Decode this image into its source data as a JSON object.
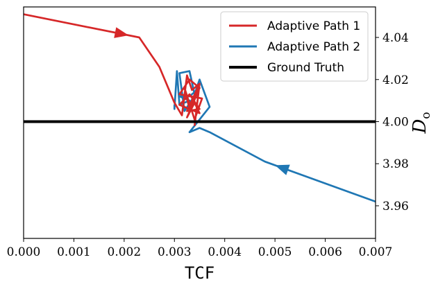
{
  "chart_data": {
    "type": "line",
    "xlabel": "TCF",
    "ylabel": "D",
    "ylabel_subscript": "o",
    "xlim": [
      0.0,
      0.007
    ],
    "ylim": [
      3.9445,
      4.0545
    ],
    "x_ticks": [
      0.0,
      0.001,
      0.002,
      0.003,
      0.004,
      0.005,
      0.006,
      0.007
    ],
    "x_tick_labels": [
      "0.000",
      "0.001",
      "0.002",
      "0.003",
      "0.004",
      "0.005",
      "0.006",
      "0.007"
    ],
    "y_ticks": [
      3.96,
      3.98,
      4.0,
      4.02,
      4.04
    ],
    "y_tick_labels": [
      "3.96",
      "3.98",
      "4.00",
      "4.02",
      "4.04"
    ],
    "y_axis_side": "right",
    "grid": false,
    "legend_position": "top-right",
    "series": [
      {
        "name": "Adaptive Path 1",
        "color": "#d62728",
        "arrow_at_segment": 0,
        "x": [
          0.0,
          0.0023,
          0.0027,
          0.003,
          0.00315,
          0.00325,
          0.00335,
          0.0035,
          0.0033,
          0.0032,
          0.0034,
          0.00355,
          0.0031,
          0.0033,
          0.0035,
          0.00325,
          0.0034,
          0.0035,
          0.0031,
          0.0033,
          0.0035,
          0.00325,
          0.0035,
          0.0034
        ],
        "y": [
          4.051,
          4.04,
          4.026,
          4.009,
          4.003,
          4.022,
          4.015,
          4.018,
          4.006,
          4.016,
          4.001,
          4.011,
          4.013,
          4.02,
          4.016,
          4.002,
          4.009,
          4.004,
          4.008,
          4.013,
          4.006,
          4.005,
          4.018,
          3.998
        ]
      },
      {
        "name": "Adaptive Path 2",
        "color": "#1f77b4",
        "arrow_at_segment": 0,
        "x": [
          0.007,
          0.0048,
          0.0037,
          0.0035,
          0.0033,
          0.0037,
          0.0035,
          0.0034,
          0.0033,
          0.0031,
          0.0032,
          0.0035,
          0.0033,
          0.0031,
          0.0033,
          0.0031,
          0.00305,
          0.003,
          0.003
        ],
        "y": [
          3.962,
          3.981,
          3.995,
          3.997,
          3.995,
          4.007,
          4.02,
          4.013,
          4.024,
          4.023,
          4.005,
          4.016,
          4.012,
          4.012,
          4.01,
          4.008,
          4.024,
          4.006,
          4.008
        ]
      },
      {
        "name": "Ground Truth",
        "color": "#000000",
        "x": [
          0.0,
          0.007
        ],
        "y": [
          4.0,
          4.0
        ]
      }
    ]
  }
}
